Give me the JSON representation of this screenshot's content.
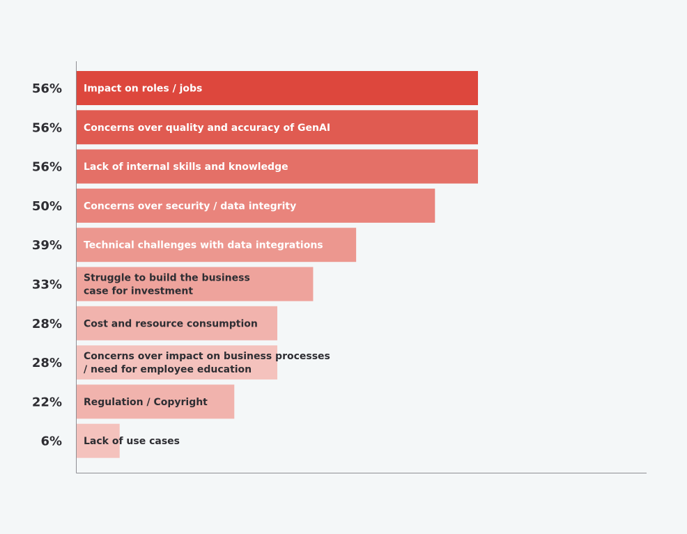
{
  "chart_data": {
    "type": "bar",
    "orientation": "horizontal",
    "title": "",
    "xlabel": "",
    "ylabel": "",
    "grid": false,
    "unit": "%",
    "xlim": [
      0,
      80
    ],
    "categories": [
      "Impact on roles / jobs",
      "Concerns over quality and accuracy of GenAI",
      "Lack of internal skills and knowledge",
      "Concerns over security / data integrity",
      "Technical challenges with data integrations",
      "Struggle to build the business case for investment",
      "Cost and resource consumption",
      "Concerns over impact on business processes / need for employee education",
      "Regulation / Copyright",
      "Lack of use cases"
    ],
    "label_lines": [
      [
        "Impact on roles / jobs"
      ],
      [
        "Concerns over quality and accuracy of GenAI"
      ],
      [
        "Lack of internal skills and knowledge"
      ],
      [
        "Concerns over security / data integrity"
      ],
      [
        "Technical challenges with data integrations"
      ],
      [
        "Struggle to build the business",
        "case for investment"
      ],
      [
        "Cost and resource consumption"
      ],
      [
        "Concerns over impact on business processes",
        "/ need for employee education"
      ],
      [
        "Regulation / Copyright"
      ],
      [
        "Lack of use cases"
      ]
    ],
    "values": [
      56,
      56,
      56,
      50,
      39,
      33,
      28,
      28,
      22,
      6
    ],
    "value_labels": [
      "56%",
      "56%",
      "56%",
      "50%",
      "39%",
      "33%",
      "28%",
      "28%",
      "22%",
      "6%"
    ],
    "colors": [
      "#dd473d",
      "#e05b51",
      "#e47067",
      "#e9847c",
      "#ec978f",
      "#eea39c",
      "#f1b3ad",
      "#f4c2bd",
      "#f1b3ad",
      "#f4c2bd"
    ],
    "label_colors": [
      "#ffffff",
      "#ffffff",
      "#ffffff",
      "#ffffff",
      "#ffffff",
      "#2e2e33",
      "#2e2e33",
      "#2e2e33",
      "#2e2e33",
      "#2e2e33"
    ],
    "axis_color": "#8e8e93"
  }
}
